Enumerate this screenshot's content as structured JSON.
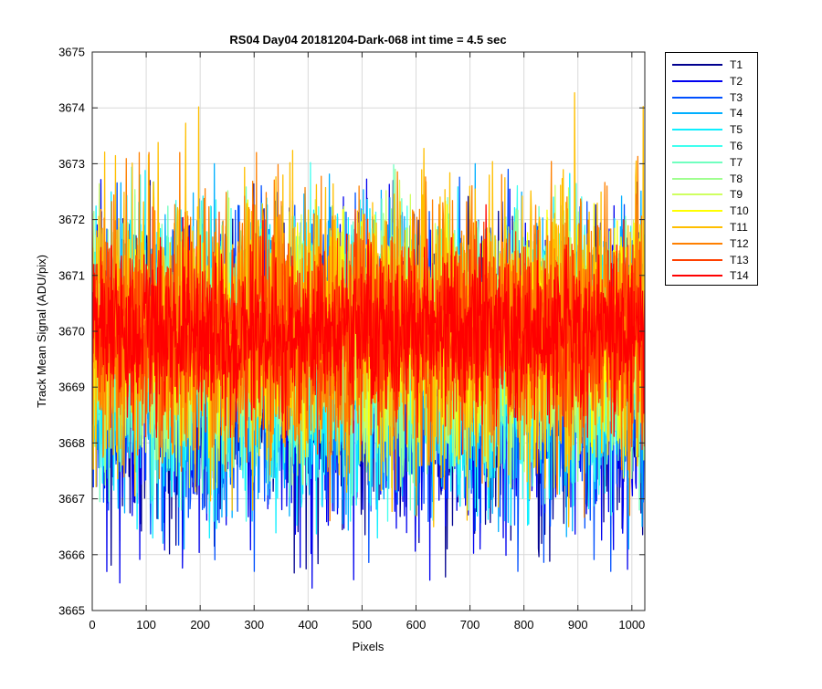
{
  "chart_data": {
    "type": "line",
    "title": "RS04 Day04 20181204-Dark-068 int time = 4.5 sec",
    "xlabel": "Pixels",
    "ylabel": "Track Mean Signal (ADU/pix)",
    "xlim": [
      0,
      1024
    ],
    "ylim": [
      3665,
      3675
    ],
    "xticks": [
      0,
      100,
      200,
      300,
      400,
      500,
      600,
      700,
      800,
      900,
      1000
    ],
    "yticks": [
      3665,
      3666,
      3667,
      3668,
      3669,
      3670,
      3671,
      3672,
      3673,
      3674,
      3675
    ],
    "grid": true,
    "legend_position": "outside-top-right",
    "n_points": 1024,
    "series": [
      {
        "name": "T1",
        "color": "#00008f",
        "mean": 3669.1,
        "range": [
          3665.6,
          3672.7
        ]
      },
      {
        "name": "T2",
        "color": "#0000ef",
        "mean": 3669.2,
        "range": [
          3665.4,
          3672.8
        ]
      },
      {
        "name": "T3",
        "color": "#0050ff",
        "mean": 3669.3,
        "range": [
          3665.7,
          3672.9
        ]
      },
      {
        "name": "T4",
        "color": "#00afff",
        "mean": 3669.4,
        "range": [
          3666.1,
          3673.0
        ]
      },
      {
        "name": "T5",
        "color": "#0fefff",
        "mean": 3669.5,
        "range": [
          3666.3,
          3673.3
        ]
      },
      {
        "name": "T6",
        "color": "#40ffef",
        "mean": 3669.6,
        "range": [
          3666.6,
          3673.4
        ]
      },
      {
        "name": "T7",
        "color": "#70ffbf",
        "mean": 3669.7,
        "range": [
          3666.8,
          3673.5
        ]
      },
      {
        "name": "T8",
        "color": "#9fff8f",
        "mean": 3669.8,
        "range": [
          3667.0,
          3673.6
        ]
      },
      {
        "name": "T9",
        "color": "#cfff60",
        "mean": 3669.9,
        "range": [
          3667.2,
          3673.5
        ]
      },
      {
        "name": "T10",
        "color": "#ffff00",
        "mean": 3670.0,
        "range": [
          3667.5,
          3673.4
        ]
      },
      {
        "name": "T11",
        "color": "#ffbf00",
        "mean": 3670.0,
        "range": [
          3666.5,
          3674.3
        ]
      },
      {
        "name": "T12",
        "color": "#ff8000",
        "mean": 3670.0,
        "range": [
          3665.8,
          3673.2
        ]
      },
      {
        "name": "T13",
        "color": "#ff4000",
        "mean": 3670.0,
        "range": [
          3667.8,
          3673.2
        ]
      },
      {
        "name": "T14",
        "color": "#ff0000",
        "mean": 3670.0,
        "range": [
          3668.1,
          3673.1
        ]
      }
    ]
  }
}
